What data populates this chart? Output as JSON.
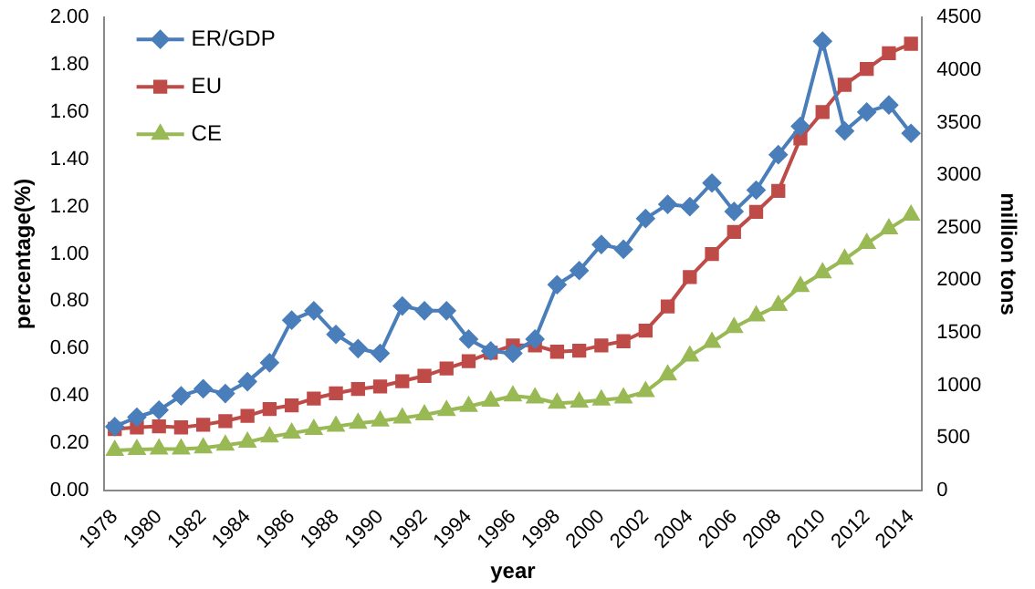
{
  "chart_data": {
    "type": "line",
    "xlabel": "year",
    "ylabel": "percentage(%)",
    "y2label": "million tons",
    "categories": [
      "1978",
      null,
      "1980",
      null,
      "1982",
      null,
      "1984",
      null,
      "1986",
      null,
      "1988",
      null,
      "1990",
      null,
      "1992",
      null,
      "1994",
      null,
      "1996",
      null,
      "1998",
      null,
      "2000",
      null,
      "2002",
      null,
      "2004",
      null,
      "2006",
      null,
      "2008",
      null,
      "2010",
      null,
      "2012",
      null,
      "2014"
    ],
    "series": [
      {
        "name": "ER/GDP",
        "color": "#4a7ebb",
        "marker": "diamond",
        "values": [
          0.27,
          0.31,
          0.34,
          0.4,
          0.43,
          0.41,
          0.46,
          0.54,
          0.72,
          0.76,
          0.66,
          0.6,
          0.58,
          0.78,
          0.76,
          0.76,
          0.64,
          0.59,
          0.58,
          0.64,
          0.87,
          0.93,
          1.04,
          1.02,
          1.15,
          1.21,
          1.2,
          1.3,
          1.18,
          1.27,
          1.42,
          1.54,
          1.9,
          1.52,
          1.6,
          1.63,
          1.51
        ]
      },
      {
        "name": "EU",
        "color": "#be4b48",
        "marker": "square",
        "axis": "y2",
        "values": [
          585,
          600,
          610,
          600,
          625,
          660,
          710,
          775,
          810,
          875,
          925,
          965,
          990,
          1040,
          1090,
          1160,
          1230,
          1310,
          1380,
          1380,
          1320,
          1330,
          1380,
          1420,
          1520,
          1750,
          2030,
          2250,
          2460,
          2650,
          2850,
          3350,
          3600,
          3860,
          4010,
          4160,
          4250
        ]
      },
      {
        "name": "CE",
        "color": "#98b954",
        "marker": "triangle",
        "axis": "y2",
        "values": [
          380,
          390,
          395,
          395,
          405,
          430,
          460,
          510,
          545,
          580,
          610,
          640,
          660,
          690,
          720,
          760,
          800,
          850,
          900,
          880,
          830,
          840,
          860,
          880,
          940,
          1100,
          1280,
          1410,
          1550,
          1660,
          1760,
          1940,
          2070,
          2200,
          2350,
          2490,
          2620
        ]
      }
    ],
    "ylim": [
      0,
      2
    ],
    "yticks": [
      {
        "value": 0,
        "label": "0.00"
      },
      {
        "value": 0.2,
        "label": "0.20"
      },
      {
        "value": 0.4,
        "label": "0.40"
      },
      {
        "value": 0.6,
        "label": "0.60"
      },
      {
        "value": 0.8,
        "label": "0.80"
      },
      {
        "value": 1,
        "label": "1.00"
      },
      {
        "value": 1.2,
        "label": "1.20"
      },
      {
        "value": 1.4,
        "label": "1.40"
      },
      {
        "value": 1.6,
        "label": "1.60"
      },
      {
        "value": 1.8,
        "label": "1.80"
      },
      {
        "value": 2,
        "label": "2.00"
      }
    ],
    "y2lim": [
      0,
      4500
    ],
    "y2ticks": [
      0,
      500,
      1000,
      1500,
      2000,
      2500,
      3000,
      3500,
      4000,
      4500
    ],
    "grid": false,
    "legend": "top left"
  }
}
